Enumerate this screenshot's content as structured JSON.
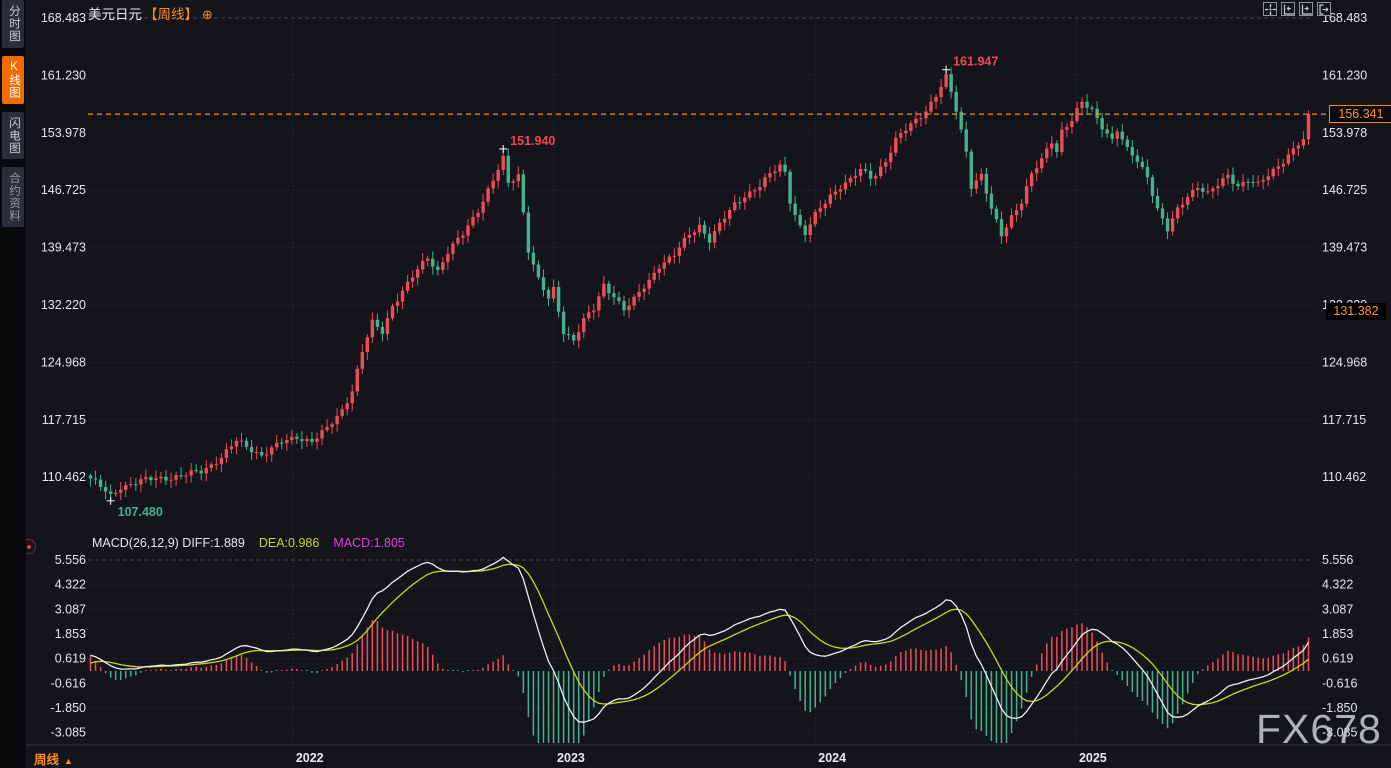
{
  "colors": {
    "up": "#ee4b5c",
    "down": "#46b28a",
    "accent_orange": "#ff8a1e",
    "diff_line": "#edeff3",
    "dea_line": "#cdd422",
    "macd_value": "#e23ee2",
    "annotation_high": "#f0455a",
    "annotation_low": "#3eb489",
    "axis_text": "#e4e6ea",
    "grid": "#2d3138",
    "grid_dash": "#41454d"
  },
  "sidebar": {
    "items": [
      {
        "label": "分时图",
        "active": false
      },
      {
        "label": "K线图",
        "active": true
      },
      {
        "label": "闪电图",
        "active": false
      },
      {
        "label": "合约资料",
        "active": false
      }
    ]
  },
  "header": {
    "title": "美元日元",
    "interval_tag": "【周线】",
    "add_icon": "⊕"
  },
  "toolbar": {
    "buttons": [
      {
        "name": "crosshair-move"
      },
      {
        "name": "zoom-axis-left"
      },
      {
        "name": "zoom-axis-right"
      },
      {
        "name": "exit-right"
      }
    ]
  },
  "macd_header": {
    "params": "MACD(26,12,9) DIFF:1.889",
    "dea": "DEA:0.986",
    "macd": "MACD:1.805"
  },
  "footer": {
    "interval_label": "周线",
    "arrow": "▲"
  },
  "watermark": "FX678",
  "price_scale": {
    "last_price": "156.341",
    "ref_price": "131.382"
  },
  "chart_data": {
    "type": "candlestick+macd",
    "symbol": "美元日元",
    "interval": "周线",
    "price_axis_values": [
      168.483,
      161.23,
      153.978,
      146.725,
      139.473,
      132.22,
      124.968,
      117.715,
      110.462
    ],
    "macd_axis_values": [
      5.556,
      4.322,
      3.087,
      1.853,
      0.619,
      -0.616,
      -1.85,
      -3.085
    ],
    "x_axis": {
      "year_ticks": [
        {
          "label": "2022",
          "i": 40.7
        },
        {
          "label": "2023",
          "i": 92.6
        },
        {
          "label": "2024",
          "i": 144.5
        },
        {
          "label": "2025",
          "i": 196.3
        }
      ]
    },
    "candles": {
      "count": 243,
      "last_close": 156.341,
      "close_anchors": [
        [
          0,
          110.3
        ],
        [
          2,
          109.2
        ],
        [
          4,
          108.0
        ],
        [
          6,
          109.3
        ],
        [
          9,
          109.8
        ],
        [
          13,
          110.3
        ],
        [
          18,
          110.6
        ],
        [
          22,
          111.2
        ],
        [
          26,
          113.0
        ],
        [
          29,
          115.0
        ],
        [
          32,
          114.0
        ],
        [
          34,
          113.3
        ],
        [
          38,
          114.8
        ],
        [
          41,
          115.6
        ],
        [
          44,
          115.0
        ],
        [
          47,
          116.5
        ],
        [
          50,
          119.0
        ],
        [
          52,
          121.5
        ],
        [
          54,
          126.3
        ],
        [
          56,
          129.9
        ],
        [
          58,
          128.9
        ],
        [
          60,
          132.2
        ],
        [
          63,
          134.8
        ],
        [
          65,
          136.6
        ],
        [
          67,
          138.3
        ],
        [
          69,
          136.6
        ],
        [
          71,
          138.9
        ],
        [
          74,
          141.1
        ],
        [
          77,
          144.3
        ],
        [
          80,
          148.0
        ],
        [
          82,
          150.6
        ],
        [
          83,
          147.5
        ],
        [
          85,
          148.7
        ],
        [
          86,
          144.0
        ],
        [
          87,
          139.3
        ],
        [
          89,
          135.4
        ],
        [
          91,
          132.9
        ],
        [
          92,
          134.1
        ],
        [
          94,
          128.9
        ],
        [
          96,
          127.9
        ],
        [
          98,
          130.3
        ],
        [
          100,
          131.6
        ],
        [
          102,
          134.7
        ],
        [
          104,
          133.5
        ],
        [
          106,
          131.7
        ],
        [
          108,
          132.8
        ],
        [
          111,
          135.3
        ],
        [
          113,
          137.3
        ],
        [
          116,
          138.5
        ],
        [
          119,
          141.1
        ],
        [
          121,
          142.3
        ],
        [
          123,
          140.5
        ],
        [
          125,
          142.3
        ],
        [
          128,
          144.9
        ],
        [
          130,
          146.1
        ],
        [
          133,
          147.3
        ],
        [
          135,
          148.6
        ],
        [
          137,
          149.8
        ],
        [
          138,
          149.0
        ],
        [
          139,
          145.5
        ],
        [
          141,
          142.1
        ],
        [
          142,
          141.2
        ],
        [
          144,
          143.5
        ],
        [
          147,
          146.1
        ],
        [
          149,
          147.3
        ],
        [
          151,
          148.0
        ],
        [
          153,
          149.2
        ],
        [
          155,
          148.4
        ],
        [
          156,
          148.8
        ],
        [
          158,
          150.5
        ],
        [
          160,
          153.0
        ],
        [
          162,
          154.3
        ],
        [
          164,
          155.6
        ],
        [
          166,
          156.9
        ],
        [
          168,
          158.7
        ],
        [
          170,
          160.9
        ],
        [
          171,
          159.0
        ],
        [
          172,
          156.8
        ],
        [
          174,
          151.7
        ],
        [
          175,
          147.4
        ],
        [
          177,
          148.6
        ],
        [
          179,
          144.2
        ],
        [
          181,
          141.0
        ],
        [
          183,
          143.5
        ],
        [
          185,
          145.4
        ],
        [
          187,
          148.6
        ],
        [
          189,
          150.5
        ],
        [
          191,
          153.0
        ],
        [
          192,
          151.8
        ],
        [
          193,
          154.3
        ],
        [
          195,
          155.6
        ],
        [
          197,
          157.7
        ],
        [
          199,
          156.8
        ],
        [
          201,
          154.9
        ],
        [
          203,
          153.1
        ],
        [
          204,
          154.3
        ],
        [
          206,
          151.7
        ],
        [
          208,
          150.5
        ],
        [
          210,
          148.6
        ],
        [
          212,
          144.3
        ],
        [
          214,
          141.6
        ],
        [
          216,
          144.2
        ],
        [
          218,
          146.1
        ],
        [
          220,
          147.3
        ],
        [
          222,
          146.2
        ],
        [
          224,
          147.3
        ],
        [
          226,
          148.6
        ],
        [
          228,
          147.4
        ],
        [
          230,
          148.0
        ],
        [
          232,
          147.3
        ],
        [
          234,
          148.6
        ],
        [
          236,
          149.9
        ],
        [
          238,
          151.2
        ],
        [
          240,
          152.5
        ],
        [
          241,
          152.9
        ],
        [
          242,
          156.341
        ]
      ]
    },
    "markers": [
      {
        "i": 4,
        "type": "low",
        "label": "107.480",
        "value": 107.48
      },
      {
        "i": 82,
        "type": "high",
        "label": "151.940",
        "value": 151.94
      },
      {
        "i": 170,
        "type": "high",
        "label": "161.947",
        "value": 161.947
      }
    ],
    "reference_lines": {
      "last_price": 156.341,
      "ref_price": 131.382
    },
    "macd": {
      "params": [
        26,
        12,
        9
      ],
      "diff": 1.889,
      "dea": 0.986,
      "macd": 1.805
    }
  }
}
